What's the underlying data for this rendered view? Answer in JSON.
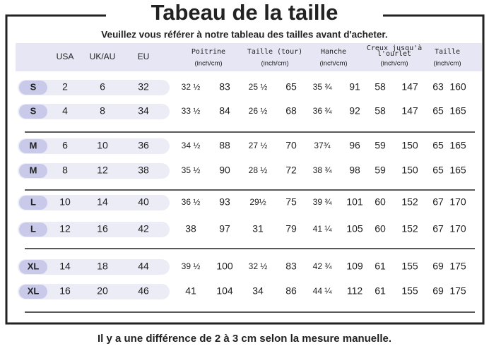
{
  "header": {
    "title": "Tabeau de la taille",
    "subtitle": "Veuillez vous référer à notre tableau des tailles avant d'acheter."
  },
  "table": {
    "columns": [
      "USA",
      "UK/AU",
      "EU"
    ],
    "measures": [
      {
        "name": [
          "Poitrine"
        ],
        "unit": "(inch/cm)"
      },
      {
        "name": [
          "Taille (tour)"
        ],
        "unit": "(inch/cm)"
      },
      {
        "name": [
          "Hanche"
        ],
        "unit": "(inch/cm)"
      },
      {
        "name": [
          "Creux jusqu'à",
          "l'ourlet"
        ],
        "unit": "(inch/cm)"
      },
      {
        "name": [
          "Taille"
        ],
        "unit": "(inch/cm)"
      }
    ],
    "rows": [
      {
        "size": "S",
        "cells": [
          "2",
          "6",
          "32",
          "32 ½",
          "83",
          "25 ½",
          "65",
          "35 ¾",
          "91",
          "58",
          "147",
          "63",
          "160"
        ]
      },
      {
        "size": "S",
        "cells": [
          "4",
          "8",
          "34",
          "33 ½",
          "84",
          "26 ½",
          "68",
          "36 ¾",
          "92",
          "58",
          "147",
          "65",
          "165"
        ]
      },
      {
        "size": "M",
        "cells": [
          "6",
          "10",
          "36",
          "34 ½",
          "88",
          "27 ½",
          "70",
          "37¾",
          "96",
          "59",
          "150",
          "65",
          "165"
        ]
      },
      {
        "size": "M",
        "cells": [
          "8",
          "12",
          "38",
          "35 ½",
          "90",
          "28 ½",
          "72",
          "38 ¾",
          "98",
          "59",
          "150",
          "65",
          "165"
        ]
      },
      {
        "size": "L",
        "cells": [
          "10",
          "14",
          "40",
          "36 ½",
          "93",
          "29½",
          "75",
          "39 ¾",
          "101",
          "60",
          "152",
          "67",
          "170"
        ]
      },
      {
        "size": "L",
        "cells": [
          "12",
          "16",
          "42",
          "38",
          "97",
          "31",
          "79",
          "41 ¼",
          "105",
          "60",
          "152",
          "67",
          "170"
        ]
      },
      {
        "size": "XL",
        "cells": [
          "14",
          "18",
          "44",
          "39 ½",
          "100",
          "32 ½",
          "83",
          "42 ¾",
          "109",
          "61",
          "155",
          "69",
          "175"
        ]
      },
      {
        "size": "XL",
        "cells": [
          "16",
          "20",
          "46",
          "41",
          "104",
          "34",
          "86",
          "44 ¼",
          "112",
          "61",
          "155",
          "69",
          "175"
        ]
      }
    ]
  },
  "footer": "Il y a une différence de 2 à 3 cm selon la mesure manuelle."
}
